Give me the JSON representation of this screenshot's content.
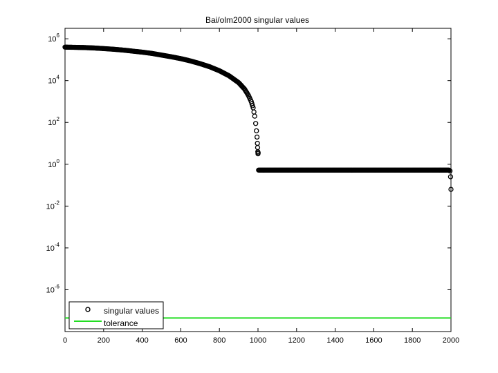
{
  "chart_data": {
    "type": "scatter",
    "title": "Bai/olm2000 singular values",
    "xlabel": "",
    "ylabel": "",
    "xlim": [
      0,
      2000
    ],
    "ylim_log10": [
      -8,
      6.5
    ],
    "yscale": "log",
    "grid": false,
    "legend_position": "bottom-left",
    "x_ticks": [
      0,
      200,
      400,
      600,
      800,
      1000,
      1200,
      1400,
      1600,
      1800,
      2000
    ],
    "x_tick_labels": [
      "0",
      "200",
      "400",
      "600",
      "800",
      "1000",
      "1200",
      "1400",
      "1600",
      "1800",
      "2000"
    ],
    "y_tick_exponents": [
      6,
      4,
      2,
      0,
      -2,
      -4,
      -6
    ],
    "y_tick_labels": [
      {
        "base": "10",
        "exp": "6"
      },
      {
        "base": "10",
        "exp": "4"
      },
      {
        "base": "10",
        "exp": "2"
      },
      {
        "base": "10",
        "exp": "0"
      },
      {
        "base": "10",
        "exp": "-2"
      },
      {
        "base": "10",
        "exp": "-4"
      },
      {
        "base": "10",
        "exp": "-6"
      }
    ],
    "series": [
      {
        "name": "singular values",
        "marker": "circle",
        "color": "#000000",
        "points_log10": [
          [
            0,
            5.6
          ],
          [
            50,
            5.59
          ],
          [
            100,
            5.58
          ],
          [
            150,
            5.56
          ],
          [
            200,
            5.53
          ],
          [
            250,
            5.5
          ],
          [
            300,
            5.46
          ],
          [
            350,
            5.41
          ],
          [
            400,
            5.36
          ],
          [
            450,
            5.3
          ],
          [
            500,
            5.22
          ],
          [
            550,
            5.14
          ],
          [
            600,
            5.05
          ],
          [
            650,
            4.94
          ],
          [
            700,
            4.81
          ],
          [
            750,
            4.66
          ],
          [
            800,
            4.47
          ],
          [
            850,
            4.23
          ],
          [
            900,
            3.9
          ],
          [
            930,
            3.6
          ],
          [
            950,
            3.3
          ],
          [
            965,
            3.0
          ],
          [
            975,
            2.7
          ],
          [
            983,
            2.3
          ],
          [
            988,
            1.95
          ],
          [
            992,
            1.6
          ],
          [
            995,
            1.3
          ],
          [
            997,
            1.0
          ],
          [
            998,
            0.8
          ],
          [
            999,
            0.6
          ],
          [
            1000,
            0.5
          ],
          [
            1001,
            0.55
          ],
          [
            1003,
            -0.28
          ],
          [
            1100,
            -0.28
          ],
          [
            1200,
            -0.28
          ],
          [
            1300,
            -0.28
          ],
          [
            1400,
            -0.28
          ],
          [
            1500,
            -0.28
          ],
          [
            1600,
            -0.28
          ],
          [
            1700,
            -0.28
          ],
          [
            1800,
            -0.28
          ],
          [
            1900,
            -0.28
          ],
          [
            1990,
            -0.28
          ],
          [
            1995,
            -0.32
          ],
          [
            1998,
            -0.6
          ],
          [
            2000,
            -1.2
          ]
        ]
      },
      {
        "name": "tolerance",
        "marker": "line",
        "color": "#22dd22",
        "points_log10": [
          [
            0,
            -7.35
          ],
          [
            2000,
            -7.35
          ]
        ]
      }
    ]
  }
}
